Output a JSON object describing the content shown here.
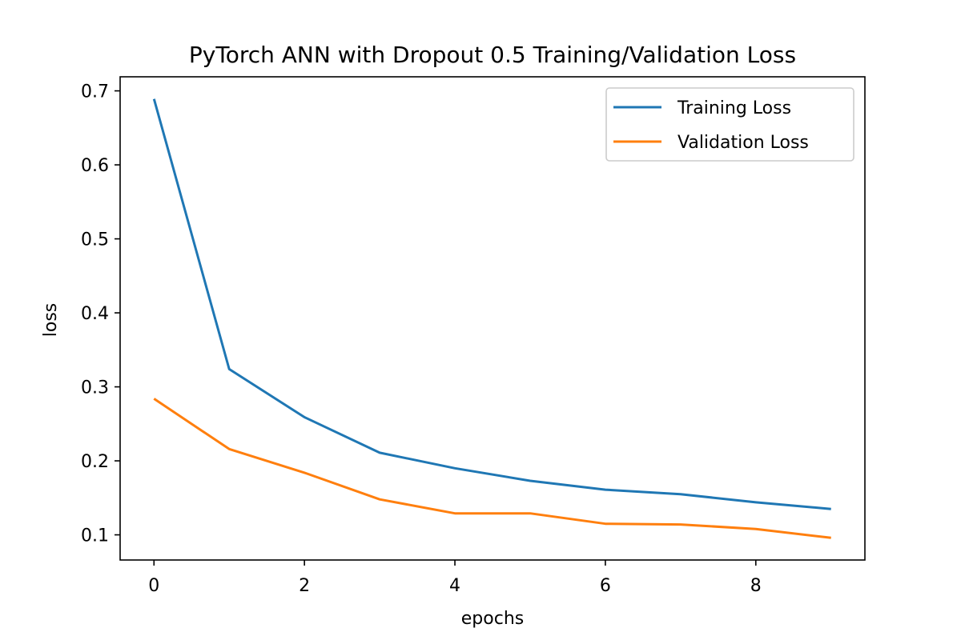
{
  "chart_data": {
    "type": "line",
    "title": "PyTorch ANN with Dropout 0.5 Training/Validation Loss",
    "xlabel": "epochs",
    "ylabel": "loss",
    "x": [
      0,
      1,
      2,
      3,
      4,
      5,
      6,
      7,
      8,
      9
    ],
    "xlim": [
      -0.45,
      9.45
    ],
    "ylim": [
      0.066,
      0.719
    ],
    "xticks": [
      "0",
      "2",
      "4",
      "6",
      "8"
    ],
    "yticks": [
      "0.1",
      "0.2",
      "0.3",
      "0.4",
      "0.5",
      "0.6",
      "0.7"
    ],
    "grid": false,
    "legend_position": "top-right",
    "series": [
      {
        "name": "Training Loss",
        "color": "#1f77b4",
        "values": [
          0.689,
          0.324,
          0.259,
          0.211,
          0.19,
          0.173,
          0.161,
          0.155,
          0.144,
          0.135
        ]
      },
      {
        "name": "Validation Loss",
        "color": "#ff7f0e",
        "values": [
          0.284,
          0.216,
          0.184,
          0.148,
          0.129,
          0.129,
          0.115,
          0.114,
          0.108,
          0.096
        ]
      }
    ]
  }
}
